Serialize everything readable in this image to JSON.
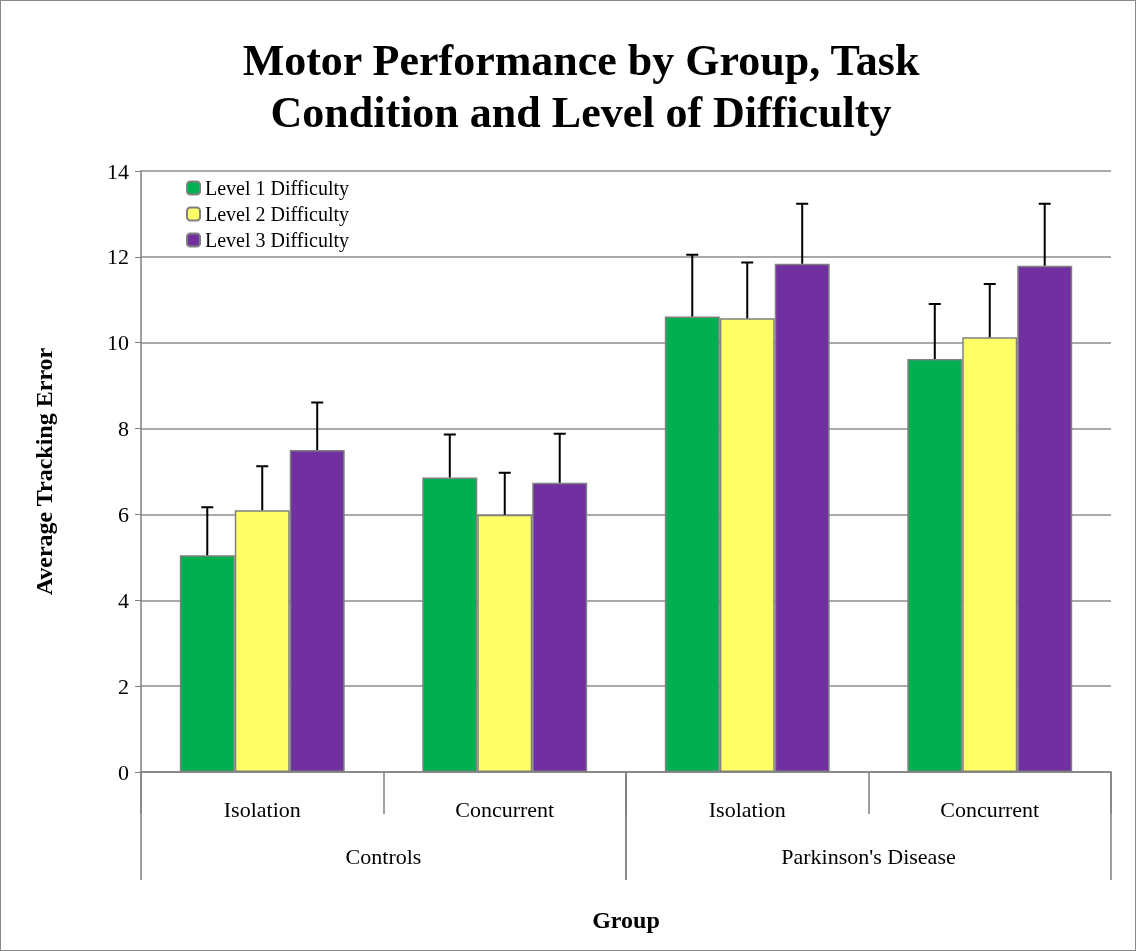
{
  "chart_data": {
    "type": "bar",
    "title": "Motor Performance by Group, Task\nCondition and Level of Difficulty",
    "xlabel": "Group",
    "ylabel": "Average Tracking Error",
    "categories": [
      "Isolation",
      "Concurrent",
      "Isolation",
      "Concurrent"
    ],
    "annotations": [
      "Controls",
      "Parkinson's Disease"
    ],
    "series": [
      {
        "name": "Level 1 Difficulty",
        "color": "#00b050",
        "values": [
          5.05,
          6.86,
          10.61,
          9.62
        ],
        "errors": [
          [
            5.05,
            6.17
          ],
          [
            6.86,
            7.86
          ],
          [
            10.61,
            12.05
          ],
          [
            9.62,
            10.9
          ]
        ]
      },
      {
        "name": "Level 2 Difficulty",
        "color": "#ffff66",
        "values": [
          6.1,
          5.99,
          10.57,
          10.13
        ],
        "errors": [
          [
            6.1,
            7.12
          ],
          [
            5.99,
            6.97
          ],
          [
            10.57,
            11.87
          ],
          [
            10.13,
            11.37
          ]
        ]
      },
      {
        "name": "Level 3 Difficulty",
        "color": "#7030a0",
        "values": [
          7.5,
          6.74,
          11.84,
          11.79
        ],
        "errors": [
          [
            7.5,
            8.61
          ],
          [
            6.74,
            7.88
          ],
          [
            11.84,
            13.24
          ],
          [
            11.79,
            13.24
          ]
        ]
      }
    ],
    "ylim": [
      0,
      14
    ],
    "yticks": [
      0,
      2,
      4,
      6,
      8,
      10,
      12,
      14
    ],
    "grid": "y",
    "legend": "top left"
  }
}
